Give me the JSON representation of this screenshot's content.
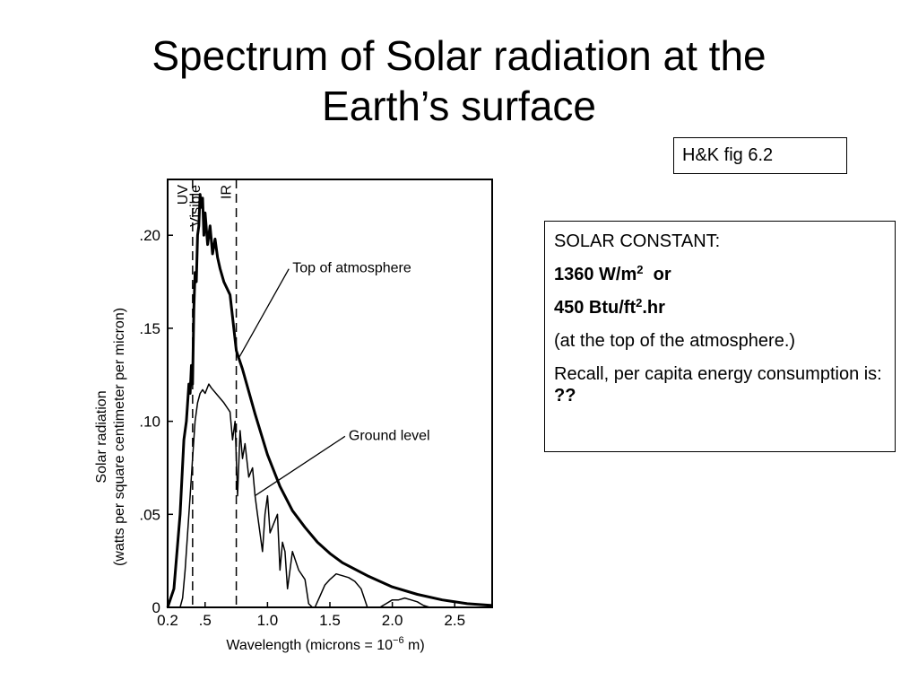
{
  "slide": {
    "title_line1": "Spectrum of Solar radiation at the",
    "title_line2": "Earth’s surface",
    "reference": "H&K fig 6.2"
  },
  "info_box": {
    "heading": "SOLAR CONSTANT:",
    "value1_number": "1360 W/m",
    "value1_sup": "2",
    "value1_suffix": "or",
    "value2_number": "450 Btu/ft",
    "value2_sup": "2",
    "value2_suffix": ".hr",
    "note": "(at the top of the atmosphere.)",
    "recall_text": "Recall, per capita energy consumption is:",
    "recall_answer": "??"
  },
  "chart_data": {
    "type": "line",
    "title": "",
    "xlabel": "Wavelength (microns = 10",
    "xlabel_exp": "−6",
    "xlabel_tail": " m)",
    "ylabel_line1": "Solar radiation",
    "ylabel_line2": "(watts per square centimeter per micron)",
    "xlim": [
      0.2,
      2.8
    ],
    "ylim": [
      0,
      0.23
    ],
    "x_ticks": [
      {
        "value": 0.2,
        "label": "0.2"
      },
      {
        "value": 0.5,
        "label": ".5"
      },
      {
        "value": 1.0,
        "label": "1.0"
      },
      {
        "value": 1.5,
        "label": "1.5"
      },
      {
        "value": 2.0,
        "label": "2.0"
      },
      {
        "value": 2.5,
        "label": "2.5"
      }
    ],
    "y_ticks": [
      {
        "value": 0,
        "label": "0"
      },
      {
        "value": 0.05,
        "label": ".05"
      },
      {
        "value": 0.1,
        "label": ".10"
      },
      {
        "value": 0.15,
        "label": ".15"
      },
      {
        "value": 0.2,
        "label": ".20"
      }
    ],
    "regions": [
      {
        "label": "UV",
        "x": 0.4
      },
      {
        "label": "Visible",
        "x": 0.5
      },
      {
        "label": "IR",
        "x": 0.75
      }
    ],
    "dividers_x": [
      0.4,
      0.75
    ],
    "annotations": [
      {
        "text": "Top of atmosphere",
        "series": 0,
        "at_x": 0.77,
        "label_x": 1.2,
        "label_y": 0.18
      },
      {
        "text": "Ground level",
        "series": 1,
        "at_x": 0.9,
        "label_x": 1.65,
        "label_y": 0.09
      }
    ],
    "series": [
      {
        "stroke_width": 3,
        "x": [
          0.2,
          0.25,
          0.3,
          0.33,
          0.35,
          0.37,
          0.38,
          0.39,
          0.4,
          0.41,
          0.42,
          0.43,
          0.44,
          0.45,
          0.46,
          0.47,
          0.48,
          0.49,
          0.5,
          0.52,
          0.54,
          0.56,
          0.58,
          0.6,
          0.62,
          0.65,
          0.7,
          0.75,
          0.8,
          0.9,
          1.0,
          1.1,
          1.2,
          1.3,
          1.4,
          1.5,
          1.6,
          1.8,
          2.0,
          2.2,
          2.4,
          2.6,
          2.8
        ],
        "values": [
          0.0,
          0.01,
          0.05,
          0.09,
          0.1,
          0.12,
          0.115,
          0.13,
          0.12,
          0.16,
          0.18,
          0.175,
          0.2,
          0.205,
          0.222,
          0.215,
          0.22,
          0.2,
          0.212,
          0.195,
          0.205,
          0.19,
          0.198,
          0.188,
          0.182,
          0.175,
          0.168,
          0.138,
          0.128,
          0.104,
          0.082,
          0.065,
          0.052,
          0.043,
          0.035,
          0.029,
          0.024,
          0.017,
          0.011,
          0.007,
          0.004,
          0.002,
          0.001
        ]
      },
      {
        "stroke_width": 1.5,
        "x": [
          0.2,
          0.25,
          0.3,
          0.32,
          0.34,
          0.36,
          0.38,
          0.4,
          0.42,
          0.44,
          0.46,
          0.48,
          0.5,
          0.53,
          0.55,
          0.6,
          0.65,
          0.7,
          0.72,
          0.74,
          0.76,
          0.78,
          0.8,
          0.82,
          0.85,
          0.88,
          0.9,
          0.92,
          0.94,
          0.96,
          0.98,
          1.0,
          1.02,
          1.05,
          1.08,
          1.1,
          1.12,
          1.14,
          1.16,
          1.2,
          1.25,
          1.3,
          1.33,
          1.36,
          1.38,
          1.42,
          1.46,
          1.5,
          1.55,
          1.6,
          1.65,
          1.7,
          1.75,
          1.8,
          1.85,
          1.9,
          1.95,
          2.0,
          2.05,
          2.1,
          2.15,
          2.2,
          2.25,
          2.3,
          2.35,
          2.4,
          2.5,
          2.6,
          2.7,
          2.8
        ],
        "values": [
          0.0,
          0.0,
          0.0,
          0.005,
          0.02,
          0.04,
          0.06,
          0.08,
          0.1,
          0.11,
          0.115,
          0.117,
          0.115,
          0.12,
          0.118,
          0.114,
          0.11,
          0.105,
          0.09,
          0.1,
          0.06,
          0.095,
          0.08,
          0.088,
          0.07,
          0.075,
          0.06,
          0.05,
          0.04,
          0.03,
          0.05,
          0.06,
          0.04,
          0.045,
          0.05,
          0.02,
          0.035,
          0.03,
          0.01,
          0.03,
          0.02,
          0.015,
          0.002,
          0.0,
          0.0,
          0.006,
          0.012,
          0.015,
          0.018,
          0.017,
          0.016,
          0.014,
          0.01,
          0.0,
          0.0,
          0.0,
          0.002,
          0.004,
          0.004,
          0.005,
          0.004,
          0.003,
          0.001,
          0.0,
          0.0,
          0.0,
          0.0,
          0.0,
          0.0,
          0.0
        ]
      }
    ]
  }
}
